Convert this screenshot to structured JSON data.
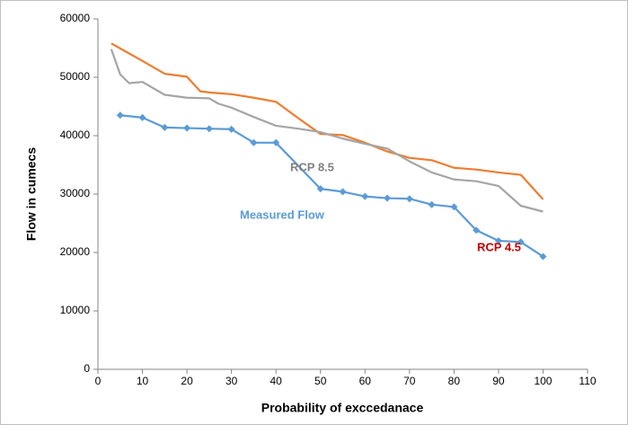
{
  "chart_data": {
    "type": "line",
    "x_label": "Probability of exccedanace",
    "y_label": "Flow in cumecs",
    "xlim": [
      0,
      110
    ],
    "xticks": [
      0,
      10,
      20,
      30,
      40,
      50,
      60,
      70,
      80,
      90,
      100,
      110
    ],
    "ylim": [
      0,
      60000
    ],
    "yticks": [
      0,
      10000,
      20000,
      30000,
      40000,
      50000,
      60000
    ],
    "grid": false,
    "series": [
      {
        "name": "Measured Flow",
        "color": "#5b9bd5",
        "marker": "diamond",
        "x": [
          5,
          10,
          15,
          20,
          25,
          30,
          35,
          40,
          50,
          55,
          60,
          65,
          70,
          75,
          80,
          85,
          90,
          95,
          100
        ],
        "values": [
          43500,
          43100,
          41400,
          41300,
          41200,
          41100,
          38800,
          38800,
          30900,
          30400,
          29600,
          29300,
          29200,
          28200,
          27800,
          23800,
          22000,
          21800,
          19300
        ]
      },
      {
        "name": "RCP 4.5",
        "color": "#ed7d31",
        "marker": "none",
        "x": [
          3,
          10,
          15,
          20,
          23,
          25,
          30,
          35,
          40,
          45,
          50,
          55,
          60,
          65,
          70,
          75,
          80,
          85,
          90,
          95,
          100
        ],
        "values": [
          55800,
          52800,
          50600,
          50100,
          47600,
          47400,
          47100,
          46500,
          45800,
          43000,
          40300,
          40100,
          38800,
          37300,
          36200,
          35800,
          34500,
          34200,
          33700,
          33300,
          29100
        ]
      },
      {
        "name": "RCP 8.5",
        "color": "#a5a5a5",
        "marker": "none",
        "x": [
          3,
          5,
          7,
          10,
          15,
          20,
          25,
          27,
          30,
          35,
          40,
          45,
          50,
          55,
          60,
          65,
          70,
          75,
          80,
          85,
          90,
          95,
          100
        ],
        "values": [
          54800,
          50500,
          49000,
          49200,
          47000,
          46500,
          46400,
          45500,
          44800,
          43200,
          41700,
          41200,
          40600,
          39500,
          38600,
          37800,
          35600,
          33700,
          32500,
          32200,
          31400,
          28000,
          27000
        ]
      }
    ],
    "label_colors": [
      "#5b9bd5",
      "#c00000",
      "#808080"
    ]
  }
}
